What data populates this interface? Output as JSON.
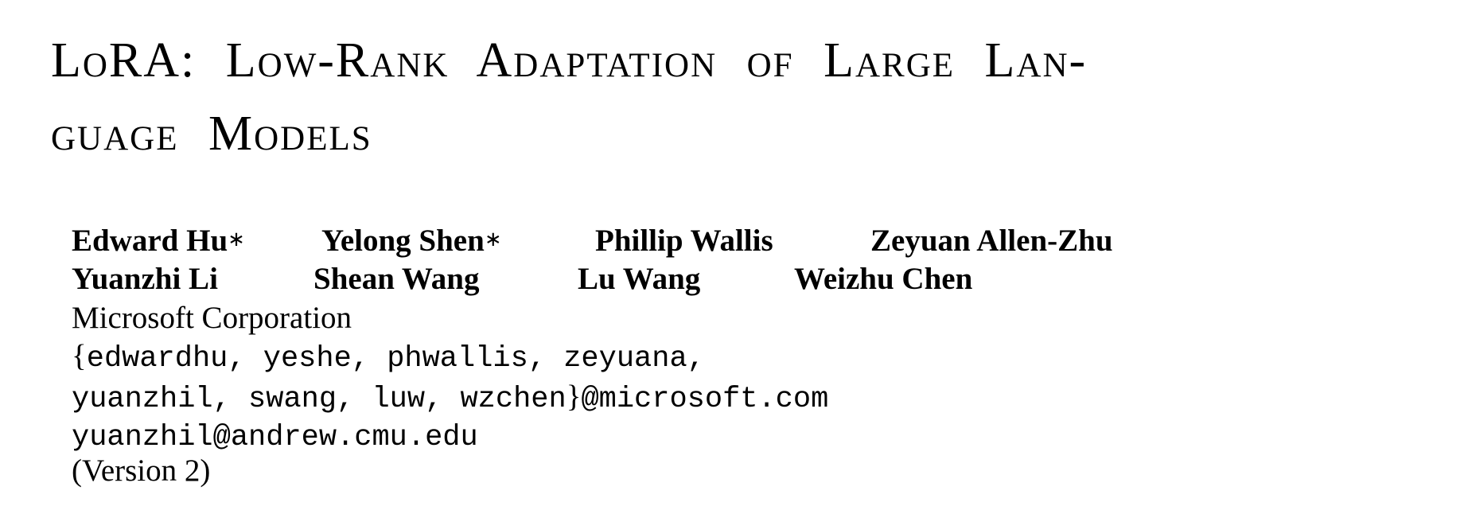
{
  "title": {
    "line1": "LoRA: Low-Rank Adaptation of Large Lan-",
    "line2": "guage Models"
  },
  "authors": {
    "row1": [
      {
        "name": "Edward Hu",
        "mark": "∗"
      },
      {
        "name": "Yelong Shen",
        "mark": "∗"
      },
      {
        "name": "Phillip Wallis",
        "mark": ""
      },
      {
        "name": "Zeyuan Allen-Zhu",
        "mark": ""
      }
    ],
    "row2": [
      {
        "name": "Yuanzhi Li",
        "mark": ""
      },
      {
        "name": "Shean Wang",
        "mark": ""
      },
      {
        "name": "Lu Wang",
        "mark": ""
      },
      {
        "name": "Weizhu Chen",
        "mark": ""
      }
    ]
  },
  "affiliation": "Microsoft Corporation",
  "emails": {
    "brace_open": "{",
    "line1": "edwardhu, yeshe, phwallis, zeyuana,",
    "line2_names": "yuanzhil, swang, luw, wzchen",
    "brace_close": "}",
    "line2_domain": "@microsoft.com",
    "line3": "yuanzhil@andrew.cmu.edu"
  },
  "version": "(Version 2)"
}
